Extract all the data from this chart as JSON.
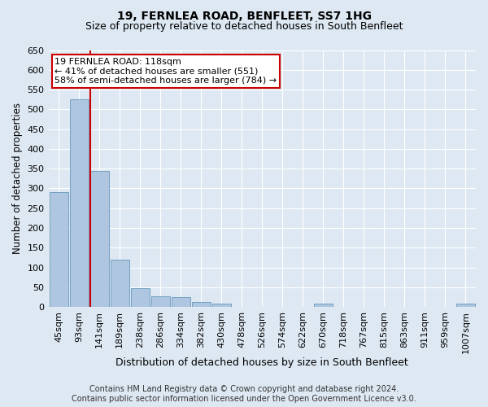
{
  "title": "19, FERNLEA ROAD, BENFLEET, SS7 1HG",
  "subtitle": "Size of property relative to detached houses in South Benfleet",
  "xlabel": "Distribution of detached houses by size in South Benfleet",
  "ylabel": "Number of detached properties",
  "footer_line1": "Contains HM Land Registry data © Crown copyright and database right 2024.",
  "footer_line2": "Contains public sector information licensed under the Open Government Licence v3.0.",
  "categories": [
    "45sqm",
    "93sqm",
    "141sqm",
    "189sqm",
    "238sqm",
    "286sqm",
    "334sqm",
    "382sqm",
    "430sqm",
    "478sqm",
    "526sqm",
    "574sqm",
    "622sqm",
    "670sqm",
    "718sqm",
    "767sqm",
    "815sqm",
    "863sqm",
    "911sqm",
    "959sqm",
    "1007sqm"
  ],
  "values": [
    290,
    525,
    345,
    120,
    47,
    28,
    25,
    13,
    8,
    0,
    0,
    0,
    0,
    8,
    0,
    0,
    0,
    0,
    0,
    0,
    8
  ],
  "bar_color": "#aec6df",
  "bar_edge_color": "#6699bb",
  "vline_color": "#cc0000",
  "vline_x": 1.55,
  "property_label": "19 FERNLEA ROAD: 118sqm",
  "annotation_line1": "← 41% of detached houses are smaller (551)",
  "annotation_line2": "58% of semi-detached houses are larger (784) →",
  "annotation_box_facecolor": "#ffffff",
  "annotation_box_edgecolor": "#cc0000",
  "ylim": [
    0,
    650
  ],
  "yticks": [
    0,
    50,
    100,
    150,
    200,
    250,
    300,
    350,
    400,
    450,
    500,
    550,
    600,
    650
  ],
  "bg_color": "#dde8f3",
  "plot_bg_color": "#dde8f3",
  "grid_color": "#ffffff",
  "title_fontsize": 10,
  "subtitle_fontsize": 9,
  "ylabel_fontsize": 8.5,
  "xlabel_fontsize": 9,
  "tick_fontsize": 8,
  "annot_fontsize": 8,
  "footer_fontsize": 7
}
